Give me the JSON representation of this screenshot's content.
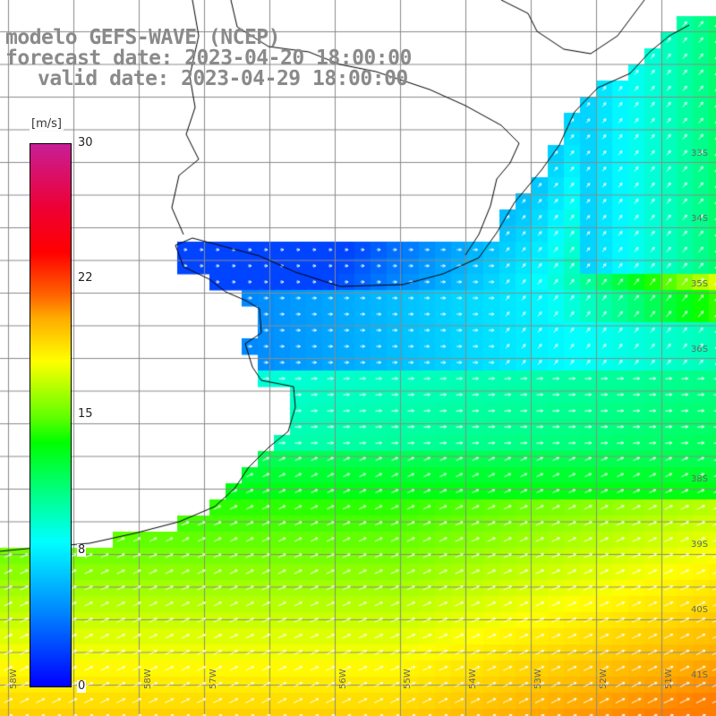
{
  "title": {
    "line1": "modelo GEFS-WAVE (NCEP)",
    "line2": "forecast date: 2023-04-20 18:00:00",
    "line3": "valid date: 2023-04-29 18:00:00"
  },
  "colorbar": {
    "unit": "[m/s]",
    "ticks": [
      "30",
      "22",
      "15",
      "8",
      "0"
    ],
    "tick_values": [
      30,
      22,
      15,
      8,
      0
    ],
    "min": 0,
    "max": 30,
    "colors": [
      "#0000ff",
      "#0088ff",
      "#00ffff",
      "#00ff80",
      "#00ff00",
      "#ffff00",
      "#ff6600",
      "#ff0000",
      "#c81e96"
    ]
  },
  "map": {
    "lat_labels": [
      "33S",
      "34S",
      "35S",
      "36S",
      "38S",
      "39S",
      "40S",
      "41S"
    ],
    "lon_labels": [
      "58W",
      "57W",
      "56W",
      "55W",
      "54W",
      "53W",
      "52W",
      "51W",
      "58W"
    ],
    "land_color": "#ffffff",
    "grid_color": "#888888",
    "arrow_color": "#ffffff"
  }
}
